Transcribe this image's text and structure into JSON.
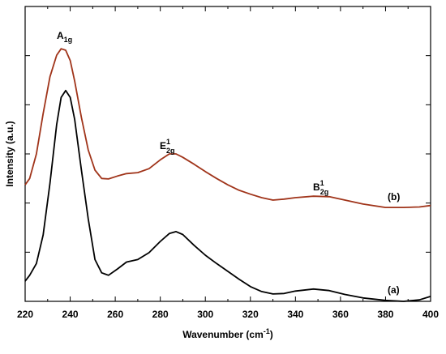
{
  "chart_data": {
    "type": "line",
    "xlabel": {
      "text": "Wavenumber (cm",
      "sup": "-1",
      "end": ")"
    },
    "ylabel": "Intensity (a.u.)",
    "x": [
      220,
      222,
      225,
      228,
      231,
      234,
      236,
      238,
      240,
      242,
      245,
      248,
      251,
      254,
      257,
      261,
      265,
      270,
      275,
      280,
      284,
      287,
      290,
      295,
      300,
      305,
      310,
      315,
      320,
      325,
      330,
      335,
      340,
      348,
      355,
      362,
      370,
      380,
      388,
      395,
      400
    ],
    "series": [
      {
        "name": "(a)",
        "color": "#000000",
        "values": [
          0.41,
          0.53,
          0.77,
          1.35,
          2.4,
          3.6,
          4.15,
          4.29,
          4.15,
          3.7,
          2.67,
          1.68,
          0.85,
          0.58,
          0.53,
          0.66,
          0.8,
          0.85,
          0.99,
          1.22,
          1.38,
          1.42,
          1.36,
          1.14,
          0.94,
          0.77,
          0.61,
          0.45,
          0.3,
          0.2,
          0.15,
          0.16,
          0.21,
          0.25,
          0.22,
          0.14,
          0.07,
          0.02,
          0,
          0.03,
          0.1
        ]
      },
      {
        "name": "(b)",
        "color": "#a0341a",
        "values": [
          2.37,
          2.5,
          3.0,
          3.82,
          4.57,
          5.01,
          5.14,
          5.11,
          4.9,
          4.48,
          3.74,
          3.08,
          2.67,
          2.5,
          2.49,
          2.55,
          2.6,
          2.62,
          2.7,
          2.88,
          3.0,
          3.0,
          2.93,
          2.79,
          2.64,
          2.5,
          2.37,
          2.26,
          2.18,
          2.11,
          2.06,
          2.08,
          2.11,
          2.14,
          2.13,
          2.06,
          1.98,
          1.91,
          1.91,
          1.92,
          1.95
        ]
      }
    ],
    "annotations": [
      {
        "base": "A",
        "sub": "1g"
      },
      {
        "base": "E",
        "sup": "1",
        "sub": "2g"
      },
      {
        "base": "B",
        "sup": "1",
        "sub": "2g"
      }
    ],
    "xlim": [
      220,
      400
    ],
    "xticks": [
      220,
      240,
      260,
      280,
      300,
      320,
      340,
      360,
      380,
      400
    ],
    "xminorticks": [
      230,
      250,
      270,
      290,
      310,
      330,
      350,
      370,
      390
    ],
    "ylim": [
      0,
      6
    ],
    "yticks": [
      1,
      2,
      3,
      4,
      5
    ]
  }
}
